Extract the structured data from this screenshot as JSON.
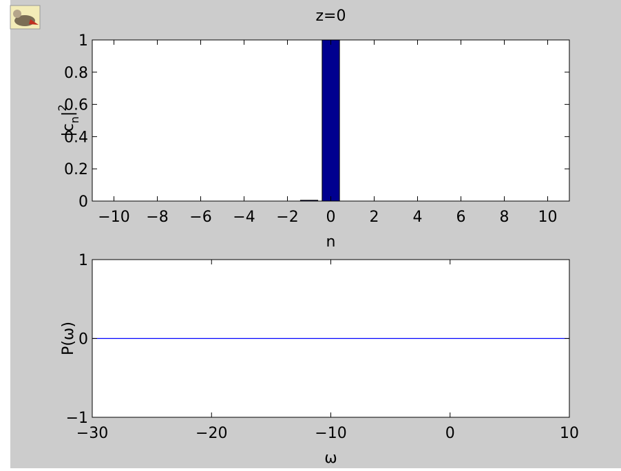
{
  "chart_data": [
    {
      "type": "bar",
      "title": "z=0",
      "xlabel": "n",
      "ylabel": "|c_n|^2",
      "x": [
        -10,
        -9,
        -8,
        -7,
        -6,
        -5,
        -4,
        -3,
        -2,
        -1,
        0,
        1,
        2,
        3,
        4,
        5,
        6,
        7,
        8,
        9,
        10
      ],
      "values": [
        0,
        0,
        0,
        0,
        0,
        0,
        0,
        0,
        0,
        0.005,
        1,
        0,
        0,
        0,
        0,
        0,
        0,
        0,
        0,
        0,
        0
      ],
      "color": "#00008f",
      "xlim": [
        -11,
        11
      ],
      "xticks": [
        -10,
        -8,
        -6,
        -4,
        -2,
        0,
        2,
        4,
        6,
        8,
        10
      ],
      "ylim": [
        0,
        1
      ],
      "yticks": [
        0,
        0.2,
        0.4,
        0.6,
        0.8,
        1
      ]
    },
    {
      "type": "line",
      "xlabel": "ω",
      "ylabel": "P(ω)",
      "x": [
        -30,
        10
      ],
      "values": [
        0,
        0
      ],
      "color": "#0000ff",
      "xlim": [
        -30,
        10
      ],
      "xticks": [
        -30,
        -20,
        -10,
        0,
        10
      ],
      "ylim": [
        -1,
        1
      ],
      "yticks": [
        -1,
        0,
        1
      ]
    }
  ]
}
